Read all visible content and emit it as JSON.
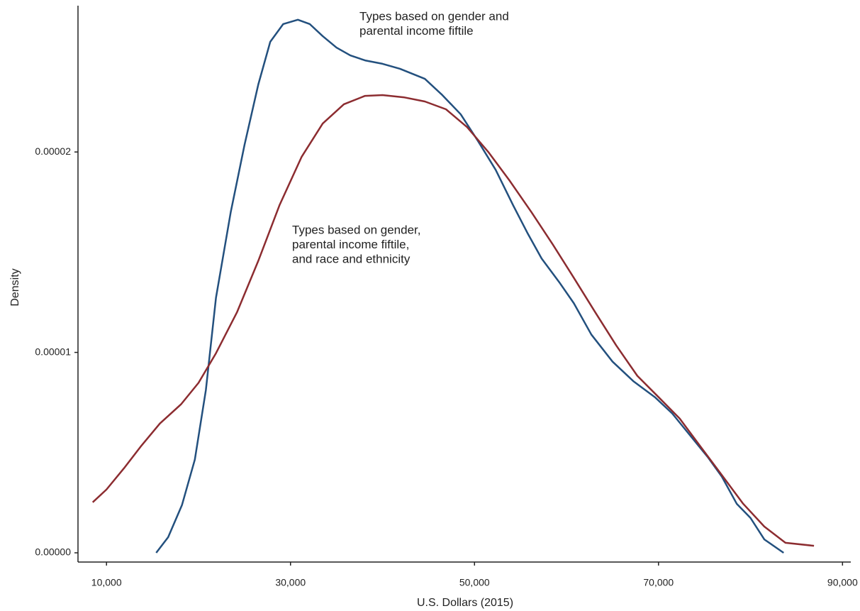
{
  "chart_data": {
    "type": "line",
    "x_label": "U.S. Dollars (2015)",
    "y_label": "Density",
    "xlim": [
      6900,
      90900
    ],
    "ylim": [
      -4.6e-07,
      2.73e-05
    ],
    "xticks": [
      {
        "value": 10000,
        "label": "10,000"
      },
      {
        "value": 30000,
        "label": "30,000"
      },
      {
        "value": 50000,
        "label": "50,000"
      },
      {
        "value": 70000,
        "label": "70,000"
      },
      {
        "value": 90000,
        "label": "90,000"
      }
    ],
    "yticks": [
      {
        "value": 0,
        "label": "0.00000"
      },
      {
        "value": 1e-05,
        "label": "0.00001"
      },
      {
        "value": 2e-05,
        "label": "0.00002"
      }
    ],
    "grid": false,
    "series": [
      {
        "label": [
          "Types based on gender and",
          "parental income fiftile"
        ],
        "color": "#23507e",
        "x": [
          15400,
          16700,
          18200,
          19600,
          20800,
          21900,
          23500,
          25000,
          26500,
          27800,
          29200,
          30800,
          32100,
          33500,
          35000,
          36500,
          38100,
          40000,
          41900,
          44600,
          46500,
          48500,
          50400,
          52300,
          54200,
          55800,
          57300,
          59200,
          60800,
          62700,
          65000,
          67300,
          69600,
          71500,
          73500,
          75400,
          76900,
          78500,
          80000,
          81500,
          83600
        ],
        "values": [
          0,
          7.8e-07,
          2.38e-06,
          4.65e-06,
          8.12e-06,
          1.273e-05,
          1.699e-05,
          2.035e-05,
          2.337e-05,
          2.55e-05,
          2.638e-05,
          2.66e-05,
          2.638e-05,
          2.578e-05,
          2.521e-05,
          2.482e-05,
          2.457e-05,
          2.44e-05,
          2.415e-05,
          2.365e-05,
          2.284e-05,
          2.188e-05,
          2.053e-05,
          1.911e-05,
          1.734e-05,
          1.592e-05,
          1.468e-05,
          1.351e-05,
          1.245e-05,
          1.089e-05,
          9.54e-06,
          8.55e-06,
          7.77e-06,
          6.95e-06,
          5.82e-06,
          4.75e-06,
          3.79e-06,
          2.45e-06,
          1.74e-06,
          6.7e-07,
          0
        ]
      },
      {
        "label": [
          "Types based on gender,",
          "parental income fiftile,",
          "and race and ethnicity"
        ],
        "color": "#8c2c30",
        "x": [
          8500,
          10000,
          11900,
          13800,
          15800,
          18100,
          20000,
          21900,
          24200,
          26500,
          28800,
          31200,
          33500,
          35800,
          38100,
          40000,
          42300,
          44600,
          46900,
          49200,
          51500,
          53800,
          56200,
          58500,
          60800,
          63100,
          65400,
          67700,
          70000,
          72300,
          74600,
          76900,
          79200,
          81500,
          83800,
          86900
        ],
        "values": [
          2.52e-06,
          3.16e-06,
          4.22e-06,
          5.35e-06,
          6.45e-06,
          7.41e-06,
          8.48e-06,
          9.96e-06,
          1.202e-05,
          1.457e-05,
          1.734e-05,
          1.975e-05,
          2.142e-05,
          2.238e-05,
          2.28e-05,
          2.284e-05,
          2.273e-05,
          2.252e-05,
          2.213e-05,
          2.124e-05,
          2e-05,
          1.858e-05,
          1.699e-05,
          1.539e-05,
          1.372e-05,
          1.202e-05,
          1.035e-05,
          8.83e-06,
          7.77e-06,
          6.7e-06,
          5.28e-06,
          3.87e-06,
          2.45e-06,
          1.31e-06,
          5e-07,
          3.5e-07
        ]
      }
    ]
  }
}
